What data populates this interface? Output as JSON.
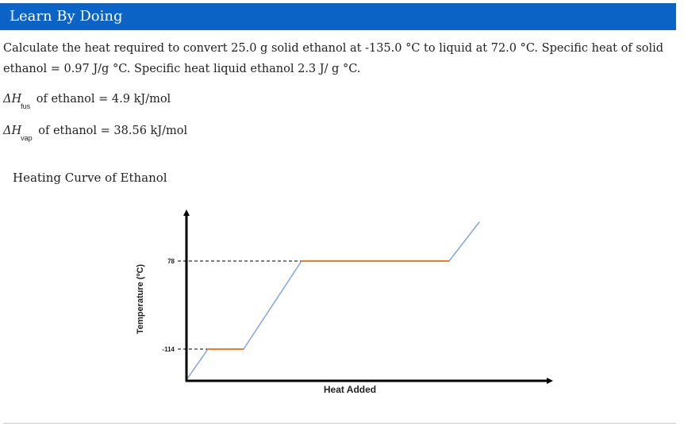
{
  "header": {
    "title": "Learn By Doing"
  },
  "problem": {
    "text": "Calculate the heat required to convert 25.0 g solid ethanol at -135.0 °C to liquid at 72.0 °C. Specific heat of solid ethanol = 0.97 J/g °C. Specific heat liquid ethanol 2.3 J/ g °C."
  },
  "equations": [
    {
      "symbol": "ΔH",
      "subscript": "fus",
      "text": " of ethanol = 4.9 kJ/mol"
    },
    {
      "symbol": "ΔH",
      "subscript": "vap",
      "text": " of ethanol = 38.56 kJ/mol"
    }
  ],
  "chart_title": "Heating Curve of Ethanol",
  "chart_data": {
    "type": "line",
    "xlabel": "Heat Added",
    "ylabel": "Temperature (ºC)",
    "y_tick_labels": [
      "-114",
      "78"
    ],
    "grid": false,
    "legend": "none",
    "x_axis_numeric": false,
    "segments": [
      {
        "phase": "heating",
        "color": "#7fa6dd",
        "points": [
          [
            0,
            -135
          ],
          [
            1,
            -114
          ]
        ]
      },
      {
        "phase": "plateau",
        "color": "#ed7d31",
        "points": [
          [
            1,
            -114
          ],
          [
            2,
            -114
          ]
        ]
      },
      {
        "phase": "heating",
        "color": "#7fa6dd",
        "points": [
          [
            2,
            -114
          ],
          [
            3,
            78
          ]
        ]
      },
      {
        "phase": "plateau",
        "color": "#ed7d31",
        "points": [
          [
            3,
            78
          ],
          [
            4,
            78
          ]
        ]
      },
      {
        "phase": "heating",
        "color": "#7fa6dd",
        "points": [
          [
            4,
            78
          ],
          [
            5,
            110
          ]
        ]
      }
    ],
    "reference_lines": [
      -114,
      78
    ]
  }
}
